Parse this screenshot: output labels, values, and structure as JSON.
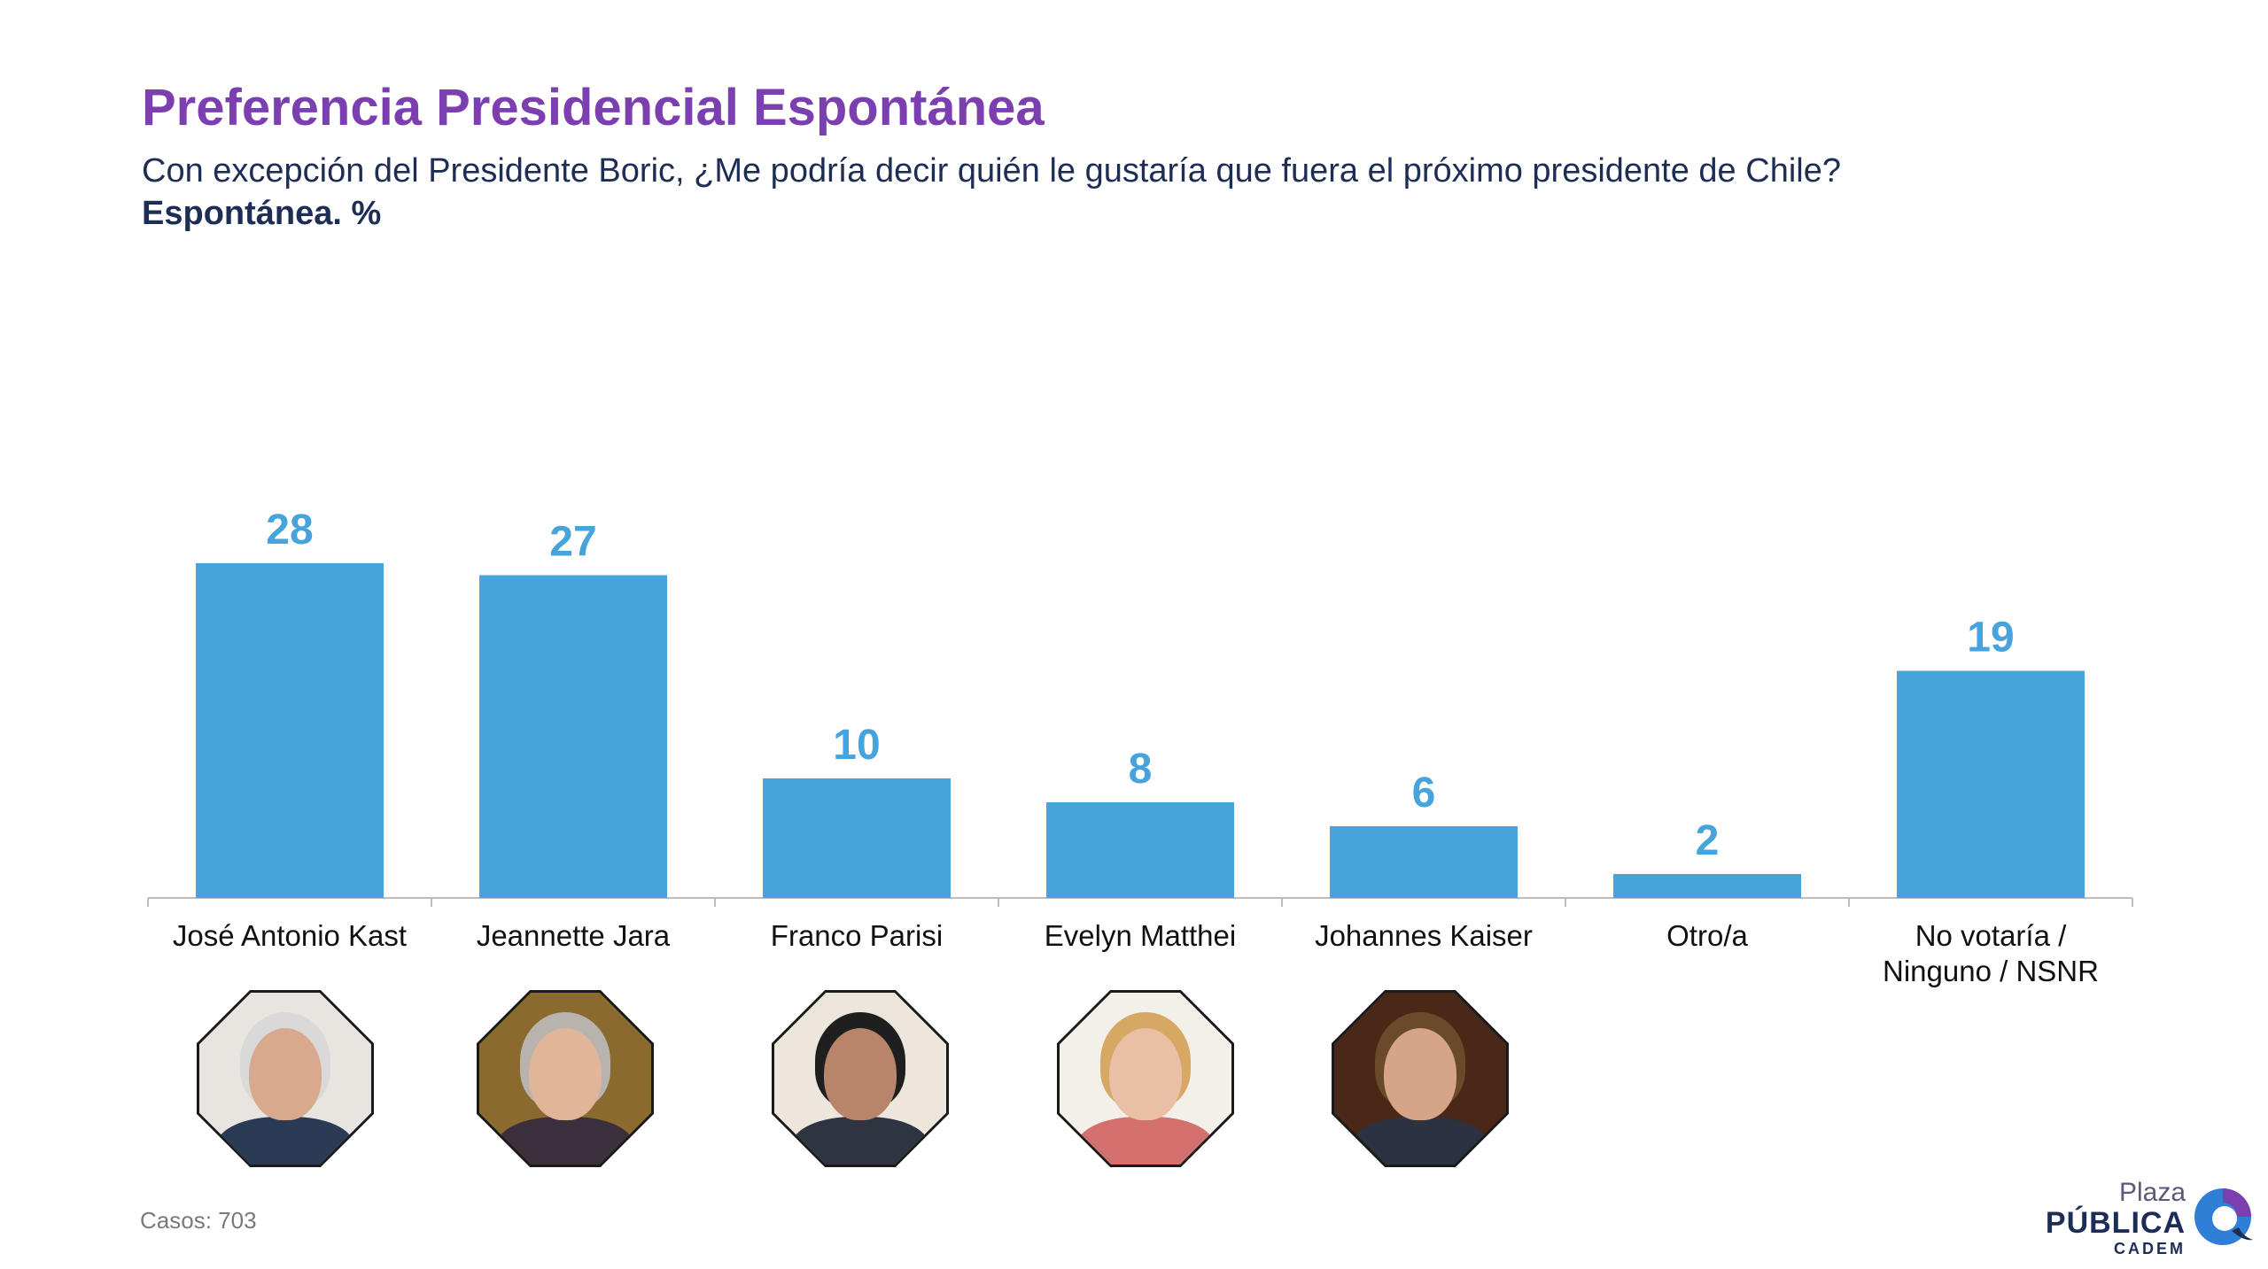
{
  "header": {
    "title": "Preferencia Presidencial Espontánea",
    "subtitle": "Con excepción del Presidente Boric, ¿Me podría decir quién le gustaría que fuera el próximo presidente de Chile?",
    "unit": "Espontánea. %"
  },
  "chart_data": {
    "type": "bar",
    "title": "Preferencia Presidencial Espontánea",
    "xlabel": "",
    "ylabel": "",
    "categories": [
      [
        "José Antonio Kast"
      ],
      [
        "Jeannette Jara"
      ],
      [
        "Franco Parisi"
      ],
      [
        "Evelyn Matthei"
      ],
      [
        "Johannes Kaiser"
      ],
      [
        "Otro/a"
      ],
      [
        "No votaría /",
        "Ninguno / NSNR"
      ]
    ],
    "values": [
      28,
      27,
      10,
      8,
      6,
      2,
      19
    ],
    "grid": false,
    "data_labels": true,
    "bar_color": "#46a3dc"
  },
  "portraits": [
    {
      "name": "José Antonio Kast",
      "icon": "portrait-photo",
      "bg": "#e8e4df",
      "hair": "#d9d9d9",
      "skin": "#d8a98c",
      "shirt": "#2b3a55"
    },
    {
      "name": "Jeannette Jara",
      "icon": "portrait-photo",
      "bg": "#8a6a2e",
      "hair": "#b8b4ad",
      "skin": "#e0b598",
      "shirt": "#3a2f3a"
    },
    {
      "name": "Franco Parisi",
      "icon": "portrait-photo",
      "bg": "#ece6dc",
      "hair": "#1f1f1f",
      "skin": "#b9856a",
      "shirt": "#2e3440"
    },
    {
      "name": "Evelyn Matthei",
      "icon": "portrait-photo",
      "bg": "#f3f0ea",
      "hair": "#d7a864",
      "skin": "#e9bfa5",
      "shirt": "#d4706e"
    },
    {
      "name": "Johannes Kaiser",
      "icon": "portrait-photo",
      "bg": "#4a2818",
      "hair": "#6a4a2a",
      "skin": "#d6a587",
      "shirt": "#2b3242"
    }
  ],
  "footer": {
    "casos": "Casos: 703"
  },
  "logo": {
    "line1": "Plaza",
    "line2": "PÚBLICA",
    "line3": "CADEM",
    "icon": "cadem-logo-icon",
    "colors": [
      "#7b3fb0",
      "#2f7fd6",
      "#1e2d55"
    ]
  }
}
